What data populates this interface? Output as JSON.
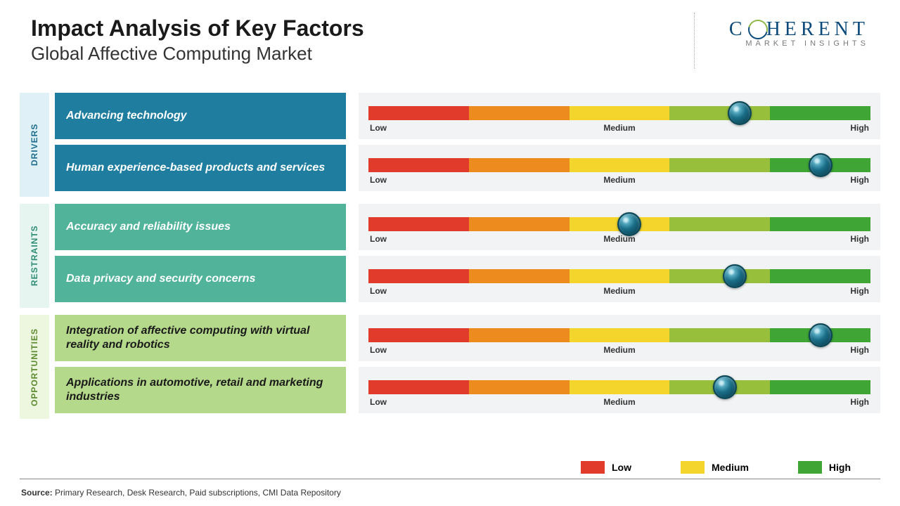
{
  "title": "Impact Analysis of Key Factors",
  "subtitle": "Global Affective Computing Market",
  "logo": {
    "main_pre": "C",
    "main_post": "HERENT",
    "sub": "MARKET INSIGHTS"
  },
  "scale_labels": {
    "low": "Low",
    "medium": "Medium",
    "high": "High"
  },
  "slider": {
    "segment_colors": [
      "#e13b2b",
      "#ee8b1f",
      "#f3d52c",
      "#97bf3b",
      "#3fa535"
    ],
    "track_bg": "#f1f3f4"
  },
  "categories": [
    {
      "label": "DRIVERS",
      "tab_color": "#dff1f6",
      "tab_text": "#1c6d8e",
      "rows": [
        {
          "factor": "Advancing technology",
          "box_color": "#1f7ea0",
          "marker_pct": 74
        },
        {
          "factor": "Human experience-based products and services",
          "box_color": "#1f7ea0",
          "marker_pct": 90
        }
      ]
    },
    {
      "label": "RESTRAINTS",
      "tab_color": "#e6f5ef",
      "tab_text": "#2e8d74",
      "rows": [
        {
          "factor": "Accuracy and reliability issues",
          "box_color": "#51b39a",
          "marker_pct": 52
        },
        {
          "factor": "Data privacy and security concerns",
          "box_color": "#51b39a",
          "marker_pct": 73
        }
      ]
    },
    {
      "label": "OPPORTUNITIES",
      "tab_color": "#edf6df",
      "tab_text": "#5c8a2e",
      "rows": [
        {
          "factor": "Integration of affective computing with virtual reality and robotics",
          "box_color": "#b5d98a",
          "text_color": "#1a1a1a",
          "marker_pct": 90
        },
        {
          "factor": "Applications in automotive, retail and marketing industries",
          "box_color": "#b5d98a",
          "text_color": "#1a1a1a",
          "marker_pct": 71
        }
      ]
    }
  ],
  "legend": [
    {
      "label": "Low",
      "color": "#e13b2b"
    },
    {
      "label": "Medium",
      "color": "#f3d52c"
    },
    {
      "label": "High",
      "color": "#3fa535"
    }
  ],
  "source_prefix": "Source: ",
  "source_text": "Primary Research, Desk Research, Paid subscriptions, CMI Data Repository"
}
